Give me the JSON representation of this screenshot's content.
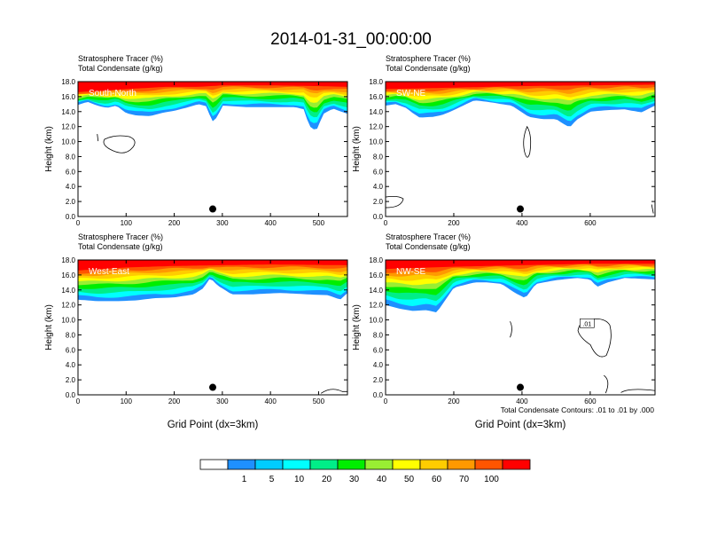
{
  "figure": {
    "title": "2014-01-31_00:00:00",
    "xlabel": "Grid Point (dx=3km)",
    "contour_note": "Total Condensate Contours: .01 to .01 by .000"
  },
  "colorbar": {
    "colors": [
      "#ffffff",
      "#1e90ff",
      "#00ccff",
      "#00ffff",
      "#00ee88",
      "#00ee00",
      "#99ee33",
      "#ffff00",
      "#ffcc00",
      "#ff9900",
      "#ff5500",
      "#ff0000"
    ],
    "labels": [
      "1",
      "5",
      "10",
      "20",
      "30",
      "40",
      "50",
      "60",
      "70",
      "100"
    ]
  },
  "chart_data": [
    {
      "type": "heatmap",
      "panel_label": "South-North",
      "header_line1": "Stratosphere Tracer   (%)",
      "header_line2": "Total Condensate   (g/kg)",
      "ylabel": "Height (km)",
      "xlim": [
        0,
        560
      ],
      "ylim": [
        0,
        18
      ],
      "xticks": [
        "0",
        "100",
        "200",
        "300",
        "400",
        "500"
      ],
      "xtick_values": [
        0,
        100,
        200,
        300,
        400,
        500
      ],
      "yticks": [
        "0.0",
        "2.0",
        "4.0",
        "6.0",
        "8.0",
        "10.0",
        "12.0",
        "14.0",
        "16.0",
        "18.0"
      ],
      "tracer_bottom_km": [
        [
          0,
          14.9
        ],
        [
          20,
          15.3
        ],
        [
          40,
          14.8
        ],
        [
          60,
          14.5
        ],
        [
          80,
          14.8
        ],
        [
          100,
          13.8
        ],
        [
          120,
          13.5
        ],
        [
          150,
          13.4
        ],
        [
          180,
          13.9
        ],
        [
          200,
          14.1
        ],
        [
          230,
          14.6
        ],
        [
          250,
          15.0
        ],
        [
          268,
          14.7
        ],
        [
          278,
          12.6
        ],
        [
          290,
          13.3
        ],
        [
          300,
          14.8
        ],
        [
          350,
          14.6
        ],
        [
          400,
          14.6
        ],
        [
          450,
          14.6
        ],
        [
          470,
          14.3
        ],
        [
          480,
          12.1
        ],
        [
          495,
          11.4
        ],
        [
          510,
          13.7
        ],
        [
          530,
          14.4
        ],
        [
          560,
          13.7
        ]
      ],
      "upper_layer_height_km": [
        [
          0,
          16.6
        ],
        [
          100,
          17.0
        ],
        [
          180,
          17.3
        ],
        [
          250,
          17.3
        ],
        [
          300,
          17.5
        ],
        [
          400,
          17.5
        ],
        [
          500,
          17.4
        ],
        [
          560,
          17.3
        ]
      ],
      "station_x": 280,
      "station_km": 1.0
    },
    {
      "type": "heatmap",
      "panel_label": "SW-NE",
      "header_line1": "Stratosphere Tracer   (%)",
      "header_line2": "Total Condensate   (g/kg)",
      "ylabel": "Height (km)",
      "xlim": [
        0,
        790
      ],
      "ylim": [
        0,
        18
      ],
      "xticks": [
        "0",
        "200",
        "400",
        "600"
      ],
      "xtick_values": [
        0,
        200,
        400,
        600
      ],
      "yticks": [
        "0.0",
        "2.0",
        "4.0",
        "6.0",
        "8.0",
        "10.0",
        "12.0",
        "14.0",
        "16.0",
        "18.0"
      ],
      "tracer_bottom_km": [
        [
          0,
          14.8
        ],
        [
          30,
          15.0
        ],
        [
          60,
          14.5
        ],
        [
          80,
          13.8
        ],
        [
          100,
          13.2
        ],
        [
          140,
          13.3
        ],
        [
          170,
          13.6
        ],
        [
          200,
          14.2
        ],
        [
          260,
          15.5
        ],
        [
          300,
          15.3
        ],
        [
          340,
          15.0
        ],
        [
          370,
          14.8
        ],
        [
          390,
          14.2
        ],
        [
          420,
          13.3
        ],
        [
          460,
          13.0
        ],
        [
          500,
          13.0
        ],
        [
          520,
          12.4
        ],
        [
          540,
          11.9
        ],
        [
          560,
          12.9
        ],
        [
          600,
          14.0
        ],
        [
          650,
          14.2
        ],
        [
          700,
          14.3
        ],
        [
          750,
          13.9
        ],
        [
          790,
          14.8
        ]
      ],
      "upper_layer_height_km": [
        [
          0,
          17.0
        ],
        [
          200,
          17.2
        ],
        [
          400,
          17.4
        ],
        [
          600,
          17.5
        ],
        [
          790,
          17.6
        ]
      ],
      "station_x": 395,
      "station_km": 1.0
    },
    {
      "type": "heatmap",
      "panel_label": "West-East",
      "header_line1": "Stratosphere Tracer   (%)",
      "header_line2": "Total Condensate   (g/kg)",
      "ylabel": "Height (km)",
      "xlim": [
        0,
        560
      ],
      "ylim": [
        0,
        18
      ],
      "xticks": [
        "0",
        "100",
        "200",
        "300",
        "400",
        "500"
      ],
      "xtick_values": [
        0,
        100,
        200,
        300,
        400,
        500
      ],
      "yticks": [
        "0.0",
        "2.0",
        "4.0",
        "6.0",
        "8.0",
        "10.0",
        "12.0",
        "14.0",
        "16.0",
        "18.0"
      ],
      "tracer_bottom_km": [
        [
          0,
          12.7
        ],
        [
          40,
          12.5
        ],
        [
          80,
          12.5
        ],
        [
          120,
          12.6
        ],
        [
          160,
          12.9
        ],
        [
          200,
          13.0
        ],
        [
          240,
          13.4
        ],
        [
          260,
          14.2
        ],
        [
          275,
          15.6
        ],
        [
          290,
          14.6
        ],
        [
          320,
          13.4
        ],
        [
          360,
          13.4
        ],
        [
          420,
          13.6
        ],
        [
          480,
          13.4
        ],
        [
          520,
          13.3
        ],
        [
          545,
          12.7
        ],
        [
          560,
          13.6
        ]
      ],
      "upper_layer_height_km": [
        [
          0,
          16.6
        ],
        [
          100,
          17.0
        ],
        [
          200,
          17.2
        ],
        [
          300,
          17.3
        ],
        [
          400,
          17.4
        ],
        [
          560,
          17.3
        ]
      ],
      "station_x": 280,
      "station_km": 1.0
    },
    {
      "type": "heatmap",
      "panel_label": "NW-SE",
      "header_line1": "Stratosphere Tracer   (%)",
      "header_line2": "Total Condensate   (g/kg)",
      "ylabel": "Height (km)",
      "xlim": [
        0,
        790
      ],
      "ylim": [
        0,
        18
      ],
      "xticks": [
        "0",
        "200",
        "400",
        "600"
      ],
      "xtick_values": [
        0,
        200,
        400,
        600
      ],
      "yticks": [
        "0.0",
        "2.0",
        "4.0",
        "6.0",
        "8.0",
        "10.0",
        "12.0",
        "14.0",
        "16.0",
        "18.0"
      ],
      "tracer_bottom_km": [
        [
          0,
          12.0
        ],
        [
          40,
          11.5
        ],
        [
          80,
          11.2
        ],
        [
          120,
          11.3
        ],
        [
          150,
          11.0
        ],
        [
          170,
          12.3
        ],
        [
          200,
          14.3
        ],
        [
          260,
          15.0
        ],
        [
          300,
          15.0
        ],
        [
          340,
          14.8
        ],
        [
          380,
          13.6
        ],
        [
          410,
          12.9
        ],
        [
          440,
          14.8
        ],
        [
          500,
          15.3
        ],
        [
          560,
          15.6
        ],
        [
          600,
          15.4
        ],
        [
          620,
          14.4
        ],
        [
          650,
          15.0
        ],
        [
          700,
          15.6
        ],
        [
          790,
          15.4
        ]
      ],
      "upper_layer_height_km": [
        [
          0,
          16.8
        ],
        [
          200,
          17.1
        ],
        [
          400,
          17.3
        ],
        [
          600,
          17.5
        ],
        [
          790,
          17.5
        ]
      ],
      "station_x": 395,
      "station_km": 1.0,
      "contour_label": ".01"
    }
  ]
}
